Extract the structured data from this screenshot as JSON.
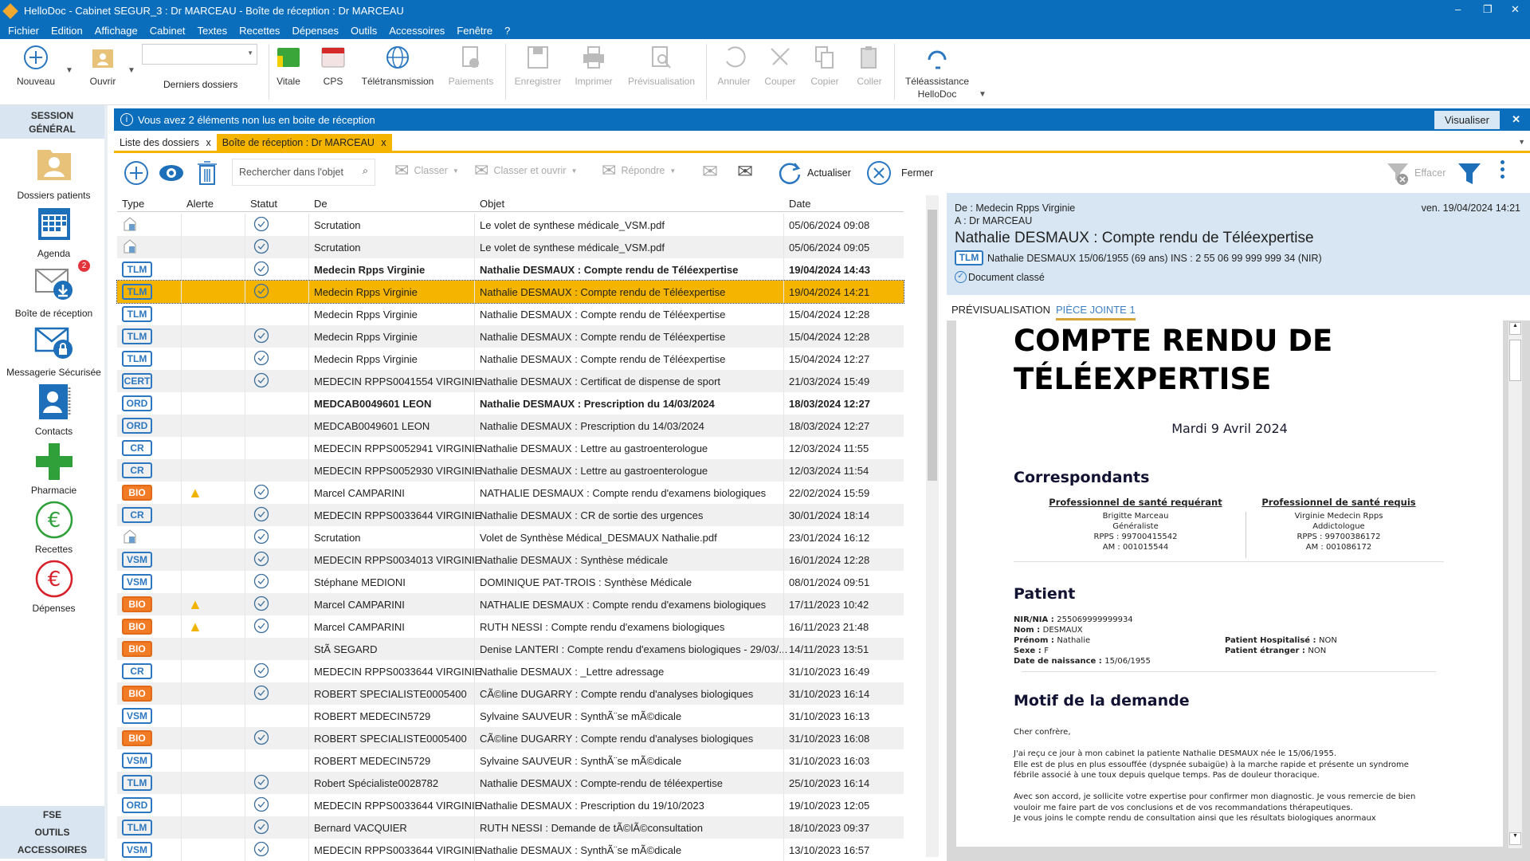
{
  "window": {
    "title": "HelloDoc - Cabinet SEGUR_3 : Dr MARCEAU - Boîte de réception : Dr MARCEAU",
    "minimize": "–",
    "restore": "❐",
    "close": "✕"
  },
  "menu": [
    "Fichier",
    "Edition",
    "Affichage",
    "Cabinet",
    "Textes",
    "Recettes",
    "Dépenses",
    "Outils",
    "Accessoires",
    "Fenêtre",
    "?"
  ],
  "toolbar": {
    "nouveau": "Nouveau",
    "ouvrir": "Ouvrir",
    "derniers": "Derniers dossiers",
    "vitale": "Vitale",
    "cps": "CPS",
    "teletransmission": "Télétransmission",
    "paiements": "Paiements",
    "enregistrer": "Enregistrer",
    "imprimer": "Imprimer",
    "previsualisation": "Prévisualisation",
    "annuler": "Annuler",
    "couper": "Couper",
    "copier": "Copier",
    "coller": "Coller",
    "teleassistance_1": "Téléassistance",
    "teleassistance_2": "HelloDoc"
  },
  "sidebar": {
    "session": "SESSION",
    "general": "GÉNÉRAL",
    "items": [
      {
        "label": "Dossiers patients"
      },
      {
        "label": "Agenda"
      },
      {
        "label": "Boîte de réception",
        "badge": "2"
      },
      {
        "label": "Messagerie Sécurisée"
      },
      {
        "label": "Contacts"
      },
      {
        "label": "Pharmacie"
      },
      {
        "label": "Recettes"
      },
      {
        "label": "Dépenses"
      }
    ],
    "bottom": [
      "FSE",
      "OUTILS",
      "ACCESSOIRES"
    ]
  },
  "info": {
    "message": "Vous avez 2 éléments non lus en boite de réception",
    "visualiser": "Visualiser",
    "close": "✕"
  },
  "tabs": [
    {
      "label": "Liste des dossiers",
      "close": "x"
    },
    {
      "label": "Boîte de réception : Dr MARCEAU",
      "close": "x"
    }
  ],
  "actions": {
    "search_placeholder": "Rechercher dans l'objet",
    "classer": "Classer",
    "classer_ouvrir": "Classer et ouvrir",
    "repondre": "Répondre",
    "actualiser": "Actualiser",
    "fermer": "Fermer",
    "effacer": "Effacer"
  },
  "grid": {
    "columns": [
      "Type",
      "Alerte",
      "Statut",
      "De",
      "Objet",
      "Date"
    ],
    "rows": [
      [
        "SCAN",
        "",
        "ok",
        "Scrutation",
        "Le volet de synthese médicale_VSM.pdf",
        "05/06/2024 09:08",
        0
      ],
      [
        "SCAN",
        "",
        "ok",
        "Scrutation",
        "Le volet de synthese médicale_VSM.pdf",
        "05/06/2024 09:05",
        0
      ],
      [
        "TLM",
        "",
        "ok",
        "Medecin Rpps Virginie",
        "Nathalie DESMAUX : Compte rendu de Téléexpertise",
        "19/04/2024 14:43",
        1
      ],
      [
        "TLM",
        "",
        "ok",
        "Medecin Rpps Virginie",
        "Nathalie DESMAUX : Compte rendu de Téléexpertise",
        "19/04/2024 14:21",
        0
      ],
      [
        "TLM",
        "",
        "",
        "Medecin Rpps Virginie",
        "Nathalie DESMAUX : Compte rendu de Téléexpertise",
        "15/04/2024 12:28",
        0
      ],
      [
        "TLM",
        "",
        "ok",
        "Medecin Rpps Virginie",
        "Nathalie DESMAUX : Compte rendu de Téléexpertise",
        "15/04/2024 12:28",
        0
      ],
      [
        "TLM",
        "",
        "ok",
        "Medecin Rpps Virginie",
        "Nathalie DESMAUX : Compte rendu de Téléexpertise",
        "15/04/2024 12:27",
        0
      ],
      [
        "CERT",
        "",
        "ok",
        "MEDECIN RPPS0041554 VIRGINIE",
        "Nathalie DESMAUX : Certificat de dispense de sport",
        "21/03/2024 15:49",
        0
      ],
      [
        "ORD",
        "",
        "",
        "MEDCAB0049601 LEON",
        "Nathalie DESMAUX : Prescription du 14/03/2024",
        "18/03/2024 12:27",
        1
      ],
      [
        "ORD",
        "",
        "",
        "MEDCAB0049601 LEON",
        "Nathalie DESMAUX : Prescription du 14/03/2024",
        "18/03/2024 12:27",
        0
      ],
      [
        "CR",
        "",
        "",
        "MEDECIN RPPS0052941 VIRGINIE",
        "Nathalie DESMAUX : Lettre au gastroenterologue",
        "12/03/2024 11:55",
        0
      ],
      [
        "CR",
        "",
        "",
        "MEDECIN RPPS0052930 VIRGINIE",
        "Nathalie DESMAUX : Lettre au gastroenterologue",
        "12/03/2024 11:54",
        0
      ],
      [
        "BIO",
        "warn",
        "ok",
        "Marcel CAMPARINI",
        "NATHALIE DESMAUX : Compte rendu d'examens biologiques",
        "22/02/2024 15:59",
        0
      ],
      [
        "CR",
        "",
        "ok",
        "MEDECIN RPPS0033644 VIRGINIE",
        "Nathalie DESMAUX : CR de sortie des urgences",
        "30/01/2024 18:14",
        0
      ],
      [
        "SCAN",
        "",
        "ok",
        "Scrutation",
        "Volet de Synthèse Médical_DESMAUX Nathalie.pdf",
        "23/01/2024 16:12",
        0
      ],
      [
        "VSM",
        "",
        "ok",
        "MEDECIN RPPS0034013 VIRGINIE",
        "Nathalie DESMAUX : Synthèse médicale",
        "16/01/2024 12:28",
        0
      ],
      [
        "VSM",
        "",
        "ok",
        "Stéphane MEDIONI",
        "DOMINIQUE PAT-TROIS : Synthèse Médicale",
        "08/01/2024 09:51",
        0
      ],
      [
        "BIO",
        "warn",
        "ok",
        "Marcel CAMPARINI",
        "NATHALIE DESMAUX : Compte rendu d'examens biologiques",
        "17/11/2023 10:42",
        0
      ],
      [
        "BIO",
        "warn",
        "ok",
        "Marcel CAMPARINI",
        "RUTH NESSI : Compte rendu d'examens biologiques",
        "16/11/2023 21:48",
        0
      ],
      [
        "BIO",
        "",
        "",
        "StÃ SEGARD",
        "Denise LANTERI : Compte rendu d'examens biologiques - 29/03/...",
        "14/11/2023 13:51",
        0
      ],
      [
        "CR",
        "",
        "ok",
        "MEDECIN RPPS0033644 VIRGINIE",
        "Nathalie DESMAUX : _Lettre adressage",
        "31/10/2023 16:49",
        0
      ],
      [
        "BIO",
        "",
        "ok",
        "ROBERT SPECIALISTE0005400",
        "CÃ©line DUGARRY : Compte rendu d'analyses biologiques",
        "31/10/2023 16:14",
        0
      ],
      [
        "VSM",
        "",
        "",
        "ROBERT MEDECIN5729",
        "Sylvaine SAUVEUR : SynthÃ¨se mÃ©dicale",
        "31/10/2023 16:13",
        0
      ],
      [
        "BIO",
        "",
        "ok",
        "ROBERT SPECIALISTE0005400",
        "CÃ©line DUGARRY : Compte rendu d'analyses biologiques",
        "31/10/2023 16:08",
        0
      ],
      [
        "VSM",
        "",
        "",
        "ROBERT MEDECIN5729",
        "Sylvaine SAUVEUR : SynthÃ¨se mÃ©dicale",
        "31/10/2023 16:03",
        0
      ],
      [
        "TLM",
        "",
        "ok",
        "Robert Spécialiste0028782",
        "Nathalie DESMAUX : Compte-rendu de téléexpertise",
        "25/10/2023 16:14",
        0
      ],
      [
        "ORD",
        "",
        "ok",
        "MEDECIN RPPS0033644 VIRGINIE",
        "Nathalie DESMAUX : Prescription du 19/10/2023",
        "19/10/2023 12:05",
        0
      ],
      [
        "TLM",
        "",
        "ok",
        "Bernard VACQUIER",
        "RUTH NESSI : Demande de tÃ©lÃ©consultation",
        "18/10/2023 09:37",
        0
      ],
      [
        "VSM",
        "",
        "ok",
        "MEDECIN RPPS0033644 VIRGINIE",
        "Nathalie DESMAUX : SynthÃ¨se mÃ©dicale",
        "13/10/2023 16:57",
        0
      ]
    ],
    "selected_index": 3
  },
  "preview": {
    "de": "De : Medecin Rpps Virginie",
    "a": "A :  Dr MARCEAU",
    "date": "ven. 19/04/2024 14:21",
    "subject": "Nathalie DESMAUX : Compte rendu de Téléexpertise",
    "badge": "TLM",
    "patient": "Nathalie DESMAUX 15/06/1955 (69 ans)  INS : 2 55 06 99 999 999 34 (NIR)",
    "status": "Document classé",
    "tabs": [
      "PRÉVISUALISATION",
      "PIÈCE JOINTE 1"
    ]
  },
  "document": {
    "title_1": "COMPTE RENDU DE",
    "title_2": "TÉLÉEXPERTISE",
    "date": "Mardi 9 Avril 2024",
    "correspondants": "Correspondants",
    "requerant": {
      "heading": "Professionnel de santé requérant",
      "lines": [
        "Brigitte Marceau",
        "Généraliste",
        "RPPS : 99700415542",
        "AM : 001015544"
      ]
    },
    "requis": {
      "heading": "Professionnel de santé requis",
      "lines": [
        "Virginie Medecin Rpps",
        "Addictologue",
        "RPPS : 99700386172",
        "AM : 001086172"
      ]
    },
    "patient_heading": "Patient",
    "patient_fields": [
      [
        "NIR/NIA : ",
        "255069999999934"
      ],
      [
        "Nom : ",
        "DESMAUX"
      ],
      [
        "Prénom : ",
        "Nathalie"
      ],
      [
        "Sexe : ",
        "F"
      ],
      [
        "Date de naissance : ",
        "15/06/1955"
      ]
    ],
    "patient_flags": [
      [
        "Patient Hospitalisé : ",
        "NON"
      ],
      [
        "Patient étranger : ",
        "NON"
      ]
    ],
    "motif_heading": "Motif de la demande",
    "motif_lines": [
      "Cher confrère,",
      "",
      "J'ai reçu ce jour à mon cabinet la patiente Nathalie DESMAUX née le 15/06/1955.",
      "Elle est de plus en plus essouffée (dyspnée subaigüe) à la marche rapide et présente un syndrome",
      "fébrile associé à une toux depuis quelque temps. Pas de douleur thoracique.",
      "",
      "Avec son accord, je sollicite votre expertise pour confirmer mon diagnostic. Je vous remercie de bien",
      "vouloir me faire part de vos conclusions et de vos recommandations thérapeutiques.",
      "Je vous joins le compte rendu de consultation ainsi que les résultats biologiques anormaux"
    ]
  },
  "colors": {
    "brand": "#0a6ebd",
    "selection": "#f5b400",
    "bio": "#f27b26",
    "badge": "#2b77c0"
  }
}
